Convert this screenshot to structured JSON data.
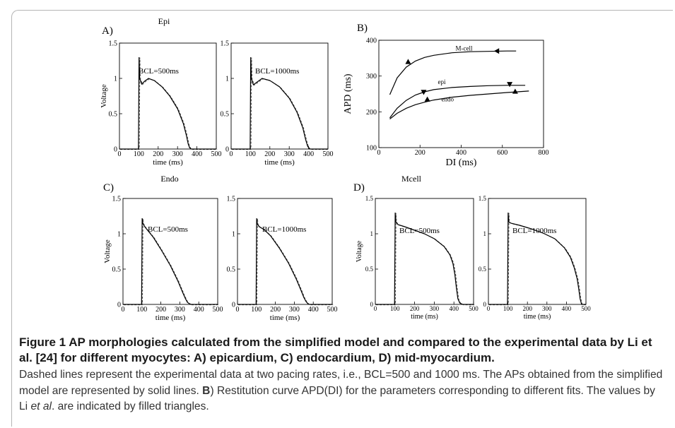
{
  "chart_data": [
    {
      "id": "A_500",
      "type": "line",
      "panel_label": "A)",
      "panel_title": "Epi",
      "annotation": "BCL=500ms",
      "xlabel": "time (ms)",
      "ylabel": "Voltage",
      "xlim": [
        0,
        500
      ],
      "ylim": [
        0,
        1.5
      ],
      "xticks": [
        "0",
        "100",
        "200",
        "300",
        "400",
        "500"
      ],
      "yticks": [
        "0",
        "0.5",
        "1",
        "1.5"
      ],
      "series": [
        {
          "style": "solid",
          "x": [
            0,
            98,
            101,
            104,
            115,
            130,
            150,
            180,
            220,
            260,
            300,
            330,
            345,
            355,
            362,
            370,
            385,
            500
          ],
          "y": [
            0,
            0,
            1.3,
            1.0,
            0.92,
            0.96,
            1.0,
            0.97,
            0.88,
            0.75,
            0.57,
            0.36,
            0.2,
            0.07,
            0.02,
            0,
            0,
            0
          ]
        }
      ]
    },
    {
      "id": "A_1000",
      "type": "line",
      "annotation": "BCL=1000ms",
      "xlabel": "time (ms)",
      "ylabel": "",
      "xlim": [
        0,
        500
      ],
      "ylim": [
        0,
        1.5
      ],
      "xticks": [
        "0",
        "100",
        "200",
        "300",
        "400",
        "500"
      ],
      "yticks": [
        "0",
        "0.5",
        "1",
        "1.5"
      ],
      "series": [
        {
          "style": "solid",
          "x": [
            0,
            98,
            101,
            104,
            115,
            130,
            160,
            200,
            250,
            300,
            340,
            370,
            385,
            395,
            405,
            500
          ],
          "y": [
            0,
            0,
            1.3,
            1.0,
            0.91,
            0.94,
            1.0,
            0.97,
            0.88,
            0.72,
            0.52,
            0.3,
            0.13,
            0.04,
            0,
            0
          ]
        }
      ]
    },
    {
      "id": "B",
      "type": "line",
      "panel_label": "B)",
      "xlabel": "DI (ms)",
      "ylabel": "APD (ms)",
      "xlim": [
        0,
        900
      ],
      "ylim": [
        100,
        400
      ],
      "xticks": [
        "0",
        "200",
        "400",
        "600",
        "800"
      ],
      "yticks": [
        "100",
        "200",
        "300",
        "400"
      ],
      "series": [
        {
          "name": "M-cell",
          "x": [
            60,
            100,
            150,
            200,
            250,
            300,
            400,
            500,
            600,
            700,
            750
          ],
          "y": [
            248,
            295,
            325,
            342,
            352,
            358,
            365,
            368,
            369,
            370,
            370
          ]
        },
        {
          "name": "epi",
          "x": [
            60,
            100,
            150,
            200,
            250,
            300,
            400,
            500,
            600,
            700,
            800
          ],
          "y": [
            183,
            210,
            232,
            247,
            256,
            262,
            268,
            271,
            273,
            274,
            274
          ]
        },
        {
          "name": "endo",
          "x": [
            60,
            100,
            150,
            200,
            250,
            300,
            400,
            500,
            600,
            700,
            820
          ],
          "y": [
            180,
            196,
            210,
            220,
            227,
            233,
            241,
            246,
            250,
            254,
            258
          ]
        }
      ],
      "markers": [
        {
          "x": 160,
          "y": 340,
          "dir": "up"
        },
        {
          "x": 645,
          "y": 370,
          "dir": "left"
        },
        {
          "x": 245,
          "y": 255,
          "dir": "down"
        },
        {
          "x": 715,
          "y": 277,
          "dir": "down"
        },
        {
          "x": 265,
          "y": 235,
          "dir": "up"
        },
        {
          "x": 745,
          "y": 257,
          "dir": "up"
        }
      ]
    },
    {
      "id": "C_500",
      "type": "line",
      "panel_label": "C)",
      "panel_title": "Endo",
      "annotation": "BCL=500ms",
      "xlabel": "time (ms)",
      "ylabel": "Voltage",
      "xlim": [
        0,
        500
      ],
      "ylim": [
        0,
        1.5
      ],
      "xticks": [
        "0",
        "100",
        "200",
        "300",
        "400",
        "500"
      ],
      "yticks": [
        "0",
        "0.5",
        "1",
        "1.5"
      ],
      "series": [
        {
          "style": "solid",
          "x": [
            0,
            98,
            101,
            104,
            115,
            130,
            160,
            200,
            250,
            290,
            315,
            330,
            340,
            350,
            360,
            500
          ],
          "y": [
            0,
            0,
            1.22,
            1.15,
            1.1,
            1.05,
            0.95,
            0.78,
            0.55,
            0.33,
            0.17,
            0.08,
            0.03,
            0.01,
            0,
            0
          ]
        }
      ]
    },
    {
      "id": "C_1000",
      "type": "line",
      "annotation": "BCL=1000ms",
      "xlabel": "time (ms)",
      "ylabel": "",
      "xlim": [
        0,
        500
      ],
      "ylim": [
        0,
        1.5
      ],
      "xticks": [
        "0",
        "100",
        "200",
        "300",
        "400",
        "500"
      ],
      "yticks": [
        "0",
        "0.5",
        "1",
        "1.5"
      ],
      "series": [
        {
          "style": "solid",
          "x": [
            0,
            98,
            101,
            104,
            115,
            140,
            175,
            220,
            270,
            310,
            335,
            350,
            362,
            372,
            380,
            500
          ],
          "y": [
            0,
            0,
            1.22,
            1.14,
            1.1,
            1.06,
            0.97,
            0.8,
            0.58,
            0.36,
            0.2,
            0.1,
            0.04,
            0.01,
            0,
            0
          ]
        }
      ]
    },
    {
      "id": "D_500",
      "type": "line",
      "panel_label": "D)",
      "panel_title": "Mcell",
      "annotation": "BCL=500ms",
      "xlabel": "time (ms)",
      "ylabel": "Voltage",
      "xlim": [
        0,
        500
      ],
      "ylim": [
        0,
        1.5
      ],
      "xticks": [
        "0",
        "100",
        "200",
        "300",
        "400",
        "500"
      ],
      "yticks": [
        "0",
        "0.5",
        "1",
        "1.5"
      ],
      "series": [
        {
          "style": "solid",
          "x": [
            0,
            98,
            101,
            104,
            115,
            150,
            200,
            250,
            300,
            350,
            380,
            395,
            405,
            412,
            420,
            430,
            445,
            500
          ],
          "y": [
            0,
            0,
            1.3,
            1.17,
            1.13,
            1.1,
            1.05,
            1.0,
            0.93,
            0.82,
            0.7,
            0.58,
            0.42,
            0.25,
            0.08,
            0.02,
            0,
            0
          ]
        }
      ]
    },
    {
      "id": "D_1000",
      "type": "line",
      "annotation": "BCL=1000ms",
      "xlabel": "time (ms)",
      "ylabel": "",
      "xlim": [
        0,
        500
      ],
      "ylim": [
        0,
        1.5
      ],
      "xticks": [
        "0",
        "100",
        "200",
        "300",
        "400",
        "500"
      ],
      "yticks": [
        "0",
        "0.5",
        "1",
        "1.5"
      ],
      "series": [
        {
          "style": "solid",
          "x": [
            0,
            98,
            101,
            104,
            115,
            160,
            220,
            280,
            340,
            390,
            420,
            440,
            455,
            463,
            470,
            478,
            500
          ],
          "y": [
            0,
            0,
            1.3,
            1.17,
            1.15,
            1.12,
            1.07,
            1.01,
            0.93,
            0.8,
            0.67,
            0.52,
            0.36,
            0.22,
            0.08,
            0,
            0
          ]
        }
      ]
    }
  ],
  "caption": {
    "title": "Figure 1 AP morphologies calculated from the simplified model and compared to the experimental data by Li et al. [24] for different myocytes: A) epicardium, C) endocardium, D) mid-myocardium.",
    "body_1": "Dashed lines represent the experimental data at two pacing rates, i.e., BCL=500 and 1000 ms. The APs obtained from the simplified model are represented by solid lines. ",
    "body_bold": "B",
    "body_2": ") Restitution curve APD(DI) for the parameters corresponding to different fits. The values by Li ",
    "body_italic": "et al",
    "body_3": ". are indicated by filled triangles."
  }
}
